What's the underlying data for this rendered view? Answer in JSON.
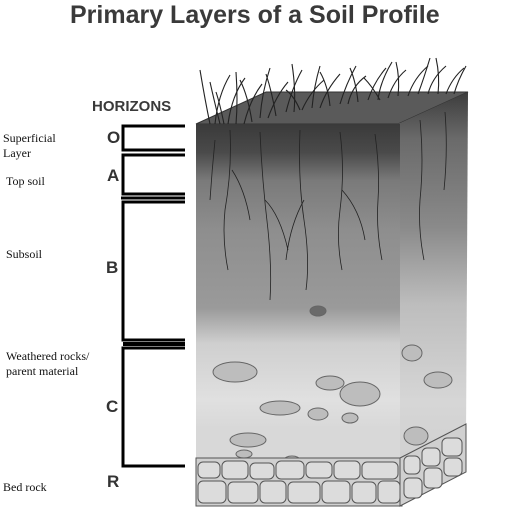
{
  "title": "Primary Layers of a Soil Profile",
  "horizons_heading": "HORIZONS",
  "horizons": [
    {
      "letter": "O",
      "label_lines": [
        "Superficial",
        "Layer"
      ]
    },
    {
      "letter": "A",
      "label_lines": [
        "Top soil"
      ]
    },
    {
      "letter": "B",
      "label_lines": [
        "Subsoil"
      ]
    },
    {
      "letter": "C",
      "label_lines": [
        "Weathered rocks/",
        "parent material"
      ]
    },
    {
      "letter": "R",
      "label_lines": [
        "Bed rock"
      ]
    }
  ]
}
